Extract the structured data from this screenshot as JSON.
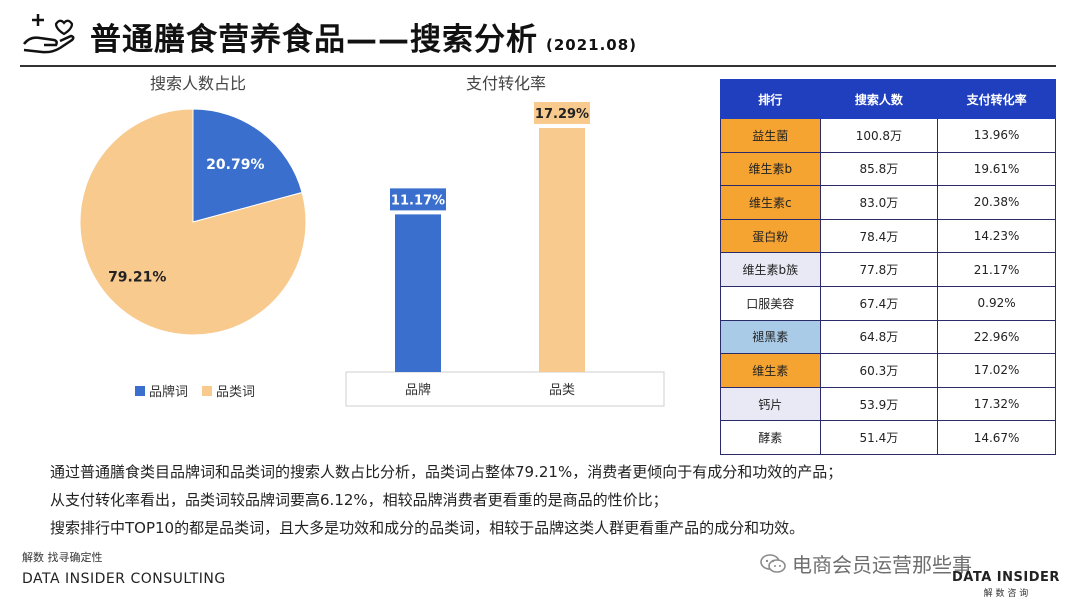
{
  "header": {
    "title": "普通膳食营养食品——搜索分析",
    "date": "(2021.08)"
  },
  "pie": {
    "title": "搜索人数占比",
    "legend": [
      "品牌词",
      "品类词"
    ],
    "colors": [
      "#3a6fcd",
      "#f8ca8e"
    ]
  },
  "bar": {
    "title": "支付转化率",
    "colors": [
      "#3a6fcd",
      "#f8ca8e"
    ]
  },
  "chart_data": [
    {
      "type": "pie",
      "title": "搜索人数占比",
      "categories": [
        "品牌词",
        "品类词"
      ],
      "values": [
        20.79,
        79.21
      ],
      "labels": [
        "20.79%",
        "79.21%"
      ],
      "legend_position": "bottom"
    },
    {
      "type": "bar",
      "title": "支付转化率",
      "categories": [
        "品牌",
        "品类"
      ],
      "values": [
        11.17,
        17.29
      ],
      "labels": [
        "11.17%",
        "17.29%"
      ],
      "ylim": [
        0,
        18
      ]
    }
  ],
  "table": {
    "headers": [
      "排行",
      "搜索人数",
      "支付转化率"
    ],
    "rows": [
      {
        "name": "益生菌",
        "search": "100.8万",
        "rate": "13.96%",
        "tone": "orange"
      },
      {
        "name": "维生素b",
        "search": "85.8万",
        "rate": "19.61%",
        "tone": "orange"
      },
      {
        "name": "维生素c",
        "search": "83.0万",
        "rate": "20.38%",
        "tone": "orange"
      },
      {
        "name": "蛋白粉",
        "search": "78.4万",
        "rate": "14.23%",
        "tone": "orange"
      },
      {
        "name": "维生素b族",
        "search": "77.8万",
        "rate": "21.17%",
        "tone": "lav"
      },
      {
        "name": "口服美容",
        "search": "67.4万",
        "rate": "0.92%",
        "tone": "white"
      },
      {
        "name": "褪黑素",
        "search": "64.8万",
        "rate": "22.96%",
        "tone": "blue"
      },
      {
        "name": "维生素",
        "search": "60.3万",
        "rate": "17.02%",
        "tone": "orange"
      },
      {
        "name": "钙片",
        "search": "53.9万",
        "rate": "17.32%",
        "tone": "lav"
      },
      {
        "name": "酵素",
        "search": "51.4万",
        "rate": "14.67%",
        "tone": "white"
      }
    ]
  },
  "analysis": [
    "通过普通膳食类目品牌词和品类词的搜索人数占比分析，品类词占整体79.21%，消费者更倾向于有成分和功效的产品；",
    "从支付转化率看出，品类词较品牌词要高6.12%，相较品牌消费者更看重的是商品的性价比；",
    "搜索排行中TOP10的都是品类词，且大多是功效和成分的品类词，相较于品牌这类人群更看重产品的成分和功效。"
  ],
  "footer": {
    "cn": "解数 找寻确定性",
    "en": "DATA INSIDER CONSULTING",
    "watermark": "电商会员运营那些事",
    "brand_en": "DATA INSIDER",
    "brand_cn": "解 数 咨 询"
  }
}
